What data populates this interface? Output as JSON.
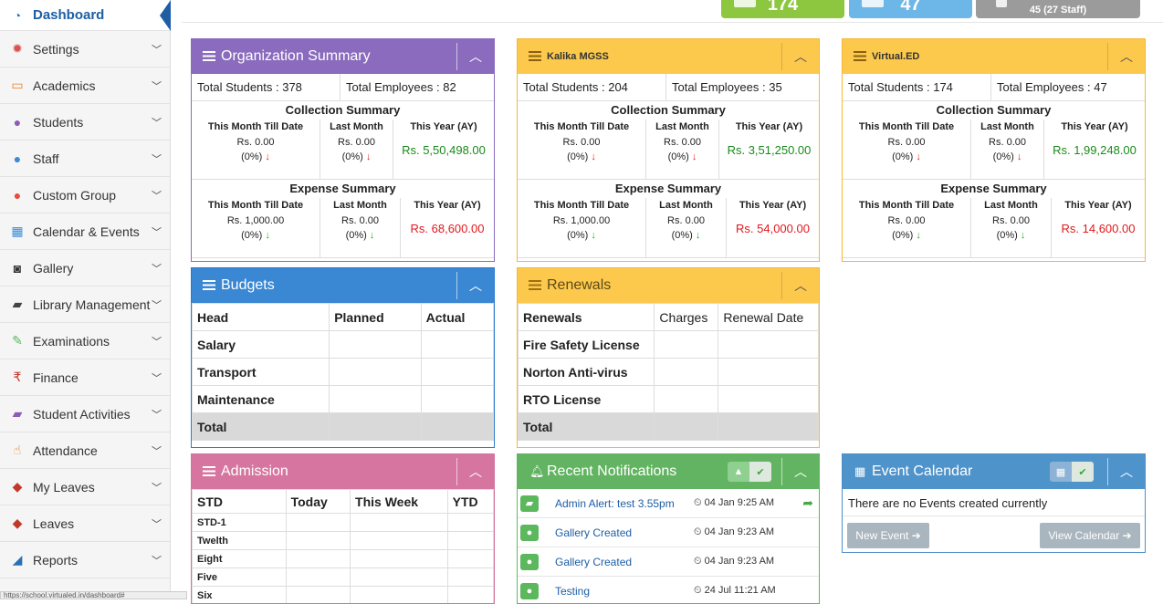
{
  "sidebar": {
    "items": [
      {
        "label": "Dashboard",
        "icon": "dashboard-icon",
        "glyph": "◔",
        "color": "#2d6fb6",
        "active": true
      },
      {
        "label": "Settings",
        "icon": "gear-icon",
        "glyph": "✹",
        "color": "#d9534f"
      },
      {
        "label": "Academics",
        "icon": "laptop-icon",
        "glyph": "▭",
        "color": "#e67e22"
      },
      {
        "label": "Students",
        "icon": "user-icon",
        "glyph": "●",
        "color": "#8e5bb5"
      },
      {
        "label": "Staff",
        "icon": "users-icon",
        "glyph": "●",
        "color": "#3a8ad6"
      },
      {
        "label": "Custom Group",
        "icon": "group-icon",
        "glyph": "●",
        "color": "#e74c3c"
      },
      {
        "label": "Calendar & Events",
        "icon": "calendar-icon",
        "glyph": "▦",
        "color": "#3a8ad6"
      },
      {
        "label": "Gallery",
        "icon": "camera-icon",
        "glyph": "◙",
        "color": "#333"
      },
      {
        "label": "Library Management",
        "icon": "book-icon",
        "glyph": "▰",
        "color": "#444"
      },
      {
        "label": "Examinations",
        "icon": "pencil-icon",
        "glyph": "✎",
        "color": "#5cb85c"
      },
      {
        "label": "Finance",
        "icon": "rupee-icon",
        "glyph": "₹",
        "color": "#c0392b"
      },
      {
        "label": "Student Activities",
        "icon": "notebook-icon",
        "glyph": "▰",
        "color": "#8e5bb5"
      },
      {
        "label": "Attendance",
        "icon": "hand-icon",
        "glyph": "☝",
        "color": "#e67e22"
      },
      {
        "label": "My Leaves",
        "icon": "tag-icon",
        "glyph": "◆",
        "color": "#c0392b"
      },
      {
        "label": "Leaves",
        "icon": "tag-icon",
        "glyph": "◆",
        "color": "#c0392b"
      },
      {
        "label": "Reports",
        "icon": "chart-icon",
        "glyph": "◢",
        "color": "#2d6fb6"
      }
    ],
    "status_url": "https://school.virtualed.in/dashboard#"
  },
  "stats": [
    {
      "value": "174",
      "color": "#8dc63f"
    },
    {
      "value": "47",
      "color": "#6cb7e8"
    },
    {
      "value": "45 (27 Staff)",
      "color": "#9b9b9b"
    }
  ],
  "org_panels": [
    {
      "title": "Organization Summary",
      "total_students": "Total Students : 378",
      "total_employees": "Total Employees : 82",
      "collection": {
        "title": "Collection Summary",
        "this_month_label": "This Month Till Date",
        "this_month": "Rs. 0.00",
        "this_month_pct": "(0%)",
        "last_month_label": "Last Month",
        "last_month": "Rs. 0.00",
        "last_month_pct": "(0%)",
        "year_label": "This Year (AY)",
        "year": "Rs. 5,50,498.00"
      },
      "expense": {
        "title": "Expense Summary",
        "this_month_label": "This Month Till Date",
        "this_month": "Rs. 1,000.00",
        "this_month_pct": "(0%)",
        "last_month_label": "Last Month",
        "last_month": "Rs. 0.00",
        "last_month_pct": "(0%)",
        "year_label": "This Year (AY)",
        "year": "Rs. 68,600.00"
      }
    },
    {
      "title": "Kalika MGSS",
      "total_students": "Total Students : 204",
      "total_employees": "Total Employees : 35",
      "collection": {
        "title": "Collection Summary",
        "this_month_label": "This Month Till Date",
        "this_month": "Rs. 0.00",
        "this_month_pct": "(0%)",
        "last_month_label": "Last Month",
        "last_month": "Rs. 0.00",
        "last_month_pct": "(0%)",
        "year_label": "This Year (AY)",
        "year": "Rs. 3,51,250.00"
      },
      "expense": {
        "title": "Expense Summary",
        "this_month_label": "This Month Till Date",
        "this_month": "Rs. 1,000.00",
        "this_month_pct": "(0%)",
        "last_month_label": "Last Month",
        "last_month": "Rs. 0.00",
        "last_month_pct": "(0%)",
        "year_label": "This Year (AY)",
        "year": "Rs. 54,000.00"
      }
    },
    {
      "title": "Virtual.ED",
      "total_students": "Total Students : 174",
      "total_employees": "Total Employees : 47",
      "collection": {
        "title": "Collection Summary",
        "this_month_label": "This Month Till Date",
        "this_month": "Rs. 0.00",
        "this_month_pct": "(0%)",
        "last_month_label": "Last Month",
        "last_month": "Rs. 0.00",
        "last_month_pct": "(0%)",
        "year_label": "This Year (AY)",
        "year": "Rs. 1,99,248.00"
      },
      "expense": {
        "title": "Expense Summary",
        "this_month_label": "This Month Till Date",
        "this_month": "Rs. 0.00",
        "this_month_pct": "(0%)",
        "last_month_label": "Last Month",
        "last_month": "Rs. 0.00",
        "last_month_pct": "(0%)",
        "year_label": "This Year (AY)",
        "year": "Rs. 14,600.00"
      }
    }
  ],
  "budgets": {
    "title": "Budgets",
    "columns": [
      "Head",
      "Planned",
      "Actual"
    ],
    "rows": [
      "Salary",
      "Transport",
      "Maintenance"
    ],
    "total": "Total"
  },
  "renewals": {
    "title": "Renewals",
    "columns": [
      "Renewals",
      "Charges",
      "Renewal Date"
    ],
    "rows": [
      "Fire Safety License",
      "Norton Anti-virus",
      "RTO License"
    ],
    "total": "Total"
  },
  "admission": {
    "title": "Admission",
    "columns": [
      "STD",
      "Today",
      "This Week",
      "YTD"
    ],
    "rows": [
      "STD-1",
      "Twelth",
      "Eight",
      "Five",
      "Six"
    ]
  },
  "notifications": {
    "title": "Recent Notifications",
    "items": [
      {
        "text": "Admin Alert: test 3.55pm",
        "time": "04 Jan 9:25 AM",
        "icon": "notebook-icon",
        "share": true
      },
      {
        "text": "Gallery Created",
        "time": "04 Jan 9:23 AM",
        "icon": "user-icon"
      },
      {
        "text": "Gallery Created",
        "time": "04 Jan 9:23 AM",
        "icon": "user-icon"
      },
      {
        "text": "Testing",
        "time": "24 Jul 11:21 AM",
        "icon": "user-icon"
      }
    ]
  },
  "events": {
    "title": "Event Calendar",
    "empty_text": "There are no Events created currently",
    "new_event": "New Event",
    "view_calendar": "View Calendar"
  }
}
